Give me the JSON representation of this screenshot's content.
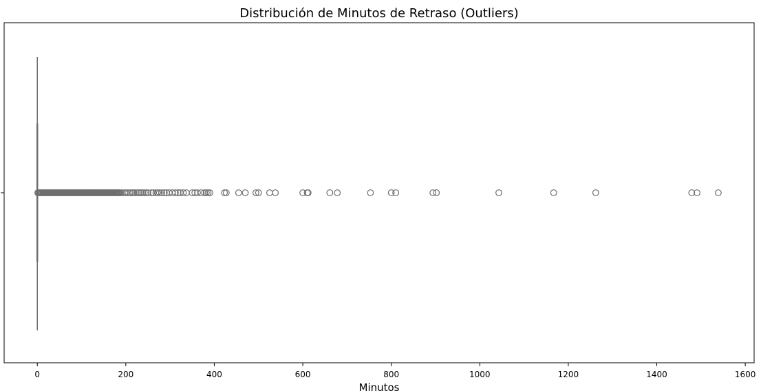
{
  "chart_data": {
    "type": "boxplot",
    "orientation": "horizontal",
    "title": "Distribución de Minutos de Retraso (Outliers)",
    "xlabel": "Minutos",
    "ylabel": "",
    "xlim": [
      -75,
      1620
    ],
    "xticks": [
      0,
      200,
      400,
      600,
      800,
      1000,
      1200,
      1400,
      1600
    ],
    "grid": false,
    "box": {
      "q1": 0,
      "median": 0,
      "q3": 0,
      "whisker_low": 0,
      "whisker_high": 0
    },
    "outliers": [
      1,
      3,
      5,
      7,
      9,
      11,
      13,
      15,
      17,
      19,
      21,
      23,
      25,
      27,
      29,
      31,
      33,
      35,
      37,
      39,
      41,
      43,
      45,
      47,
      49,
      51,
      53,
      55,
      57,
      59,
      61,
      63,
      65,
      67,
      69,
      71,
      73,
      75,
      77,
      79,
      81,
      83,
      85,
      87,
      89,
      91,
      93,
      95,
      97,
      99,
      101,
      103,
      105,
      107,
      109,
      111,
      113,
      115,
      117,
      119,
      121,
      123,
      125,
      127,
      129,
      131,
      133,
      135,
      137,
      139,
      141,
      143,
      145,
      147,
      149,
      151,
      153,
      155,
      157,
      159,
      161,
      163,
      165,
      167,
      169,
      171,
      173,
      175,
      177,
      179,
      181,
      183,
      185,
      188,
      191,
      197,
      200,
      205,
      210,
      215,
      218,
      222,
      226,
      230,
      234,
      238,
      242,
      246,
      250,
      258,
      262,
      268,
      272,
      276,
      281,
      287,
      292,
      298,
      305,
      312,
      318,
      323,
      330,
      337,
      350,
      356,
      362,
      370,
      378,
      382,
      386,
      390,
      423,
      427,
      455,
      470,
      494,
      500,
      525,
      538,
      600,
      610,
      612,
      661,
      678,
      753,
      800,
      810,
      894,
      902,
      1043,
      1167,
      1262,
      1479,
      1491,
      1539
    ],
    "colors": {
      "box_line": "#6e6e6e",
      "frame": "#000000",
      "text": "#000000"
    }
  }
}
